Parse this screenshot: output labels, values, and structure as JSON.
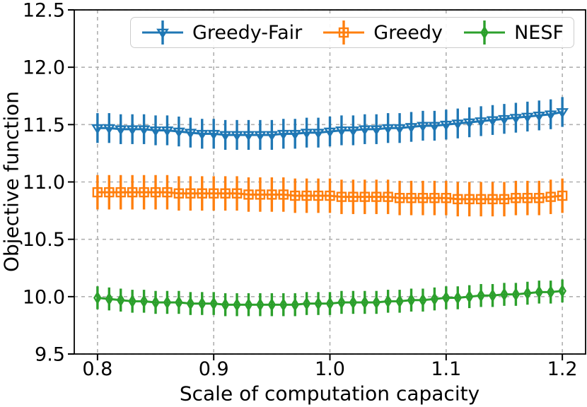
{
  "chart_data": {
    "type": "line",
    "title": "",
    "xlabel": "Scale of computation capacity",
    "ylabel": "Objective function",
    "xlim": [
      0.78,
      1.22
    ],
    "ylim": [
      9.5,
      12.5
    ],
    "grid": true,
    "grid_color": "#b0b0b0",
    "legend_position": "upper center",
    "xticks": [
      0.8,
      0.9,
      1.0,
      1.1,
      1.2
    ],
    "xtick_labels": [
      "0.8",
      "0.9",
      "1.0",
      "1.1",
      "1.2"
    ],
    "yticks": [
      9.5,
      10.0,
      10.5,
      11.0,
      11.5,
      12.0,
      12.5
    ],
    "ytick_labels": [
      "9.5",
      "10.0",
      "10.5",
      "11.0",
      "11.5",
      "12.0",
      "12.5"
    ],
    "x": [
      0.8,
      0.81,
      0.82,
      0.83,
      0.84,
      0.85,
      0.86,
      0.87,
      0.88,
      0.89,
      0.9,
      0.91,
      0.92,
      0.93,
      0.94,
      0.95,
      0.96,
      0.97,
      0.98,
      0.99,
      1.0,
      1.01,
      1.02,
      1.03,
      1.04,
      1.05,
      1.06,
      1.07,
      1.08,
      1.09,
      1.1,
      1.11,
      1.12,
      1.13,
      1.14,
      1.15,
      1.16,
      1.17,
      1.18,
      1.19,
      1.2
    ],
    "series": [
      {
        "name": "Greedy-Fair",
        "color": "#1f77b4",
        "marker": "triangle-down",
        "error": 0.13,
        "values": [
          11.47,
          11.47,
          11.46,
          11.46,
          11.46,
          11.45,
          11.45,
          11.44,
          11.43,
          11.42,
          11.42,
          11.41,
          11.41,
          11.41,
          11.41,
          11.41,
          11.42,
          11.42,
          11.43,
          11.43,
          11.44,
          11.45,
          11.45,
          11.46,
          11.46,
          11.47,
          11.47,
          11.48,
          11.49,
          11.49,
          11.5,
          11.51,
          11.52,
          11.53,
          11.54,
          11.55,
          11.56,
          11.57,
          11.58,
          11.59,
          11.61
        ]
      },
      {
        "name": "Greedy",
        "color": "#ff7f0e",
        "marker": "square",
        "error": 0.15,
        "values": [
          10.91,
          10.91,
          10.91,
          10.91,
          10.91,
          10.91,
          10.91,
          10.9,
          10.9,
          10.9,
          10.9,
          10.9,
          10.9,
          10.89,
          10.89,
          10.89,
          10.89,
          10.88,
          10.88,
          10.88,
          10.88,
          10.87,
          10.87,
          10.87,
          10.87,
          10.87,
          10.86,
          10.86,
          10.86,
          10.86,
          10.86,
          10.85,
          10.85,
          10.85,
          10.85,
          10.85,
          10.86,
          10.86,
          10.86,
          10.87,
          10.88
        ]
      },
      {
        "name": "NESF",
        "color": "#2ca02c",
        "marker": "thin-diamond",
        "error": 0.1,
        "values": [
          9.99,
          9.98,
          9.97,
          9.96,
          9.96,
          9.95,
          9.95,
          9.95,
          9.94,
          9.94,
          9.94,
          9.93,
          9.93,
          9.93,
          9.93,
          9.93,
          9.93,
          9.93,
          9.94,
          9.94,
          9.94,
          9.95,
          9.95,
          9.95,
          9.95,
          9.96,
          9.96,
          9.97,
          9.97,
          9.98,
          9.99,
          9.99,
          10.0,
          10.01,
          10.01,
          10.02,
          10.02,
          10.03,
          10.04,
          10.04,
          10.05
        ]
      }
    ]
  }
}
